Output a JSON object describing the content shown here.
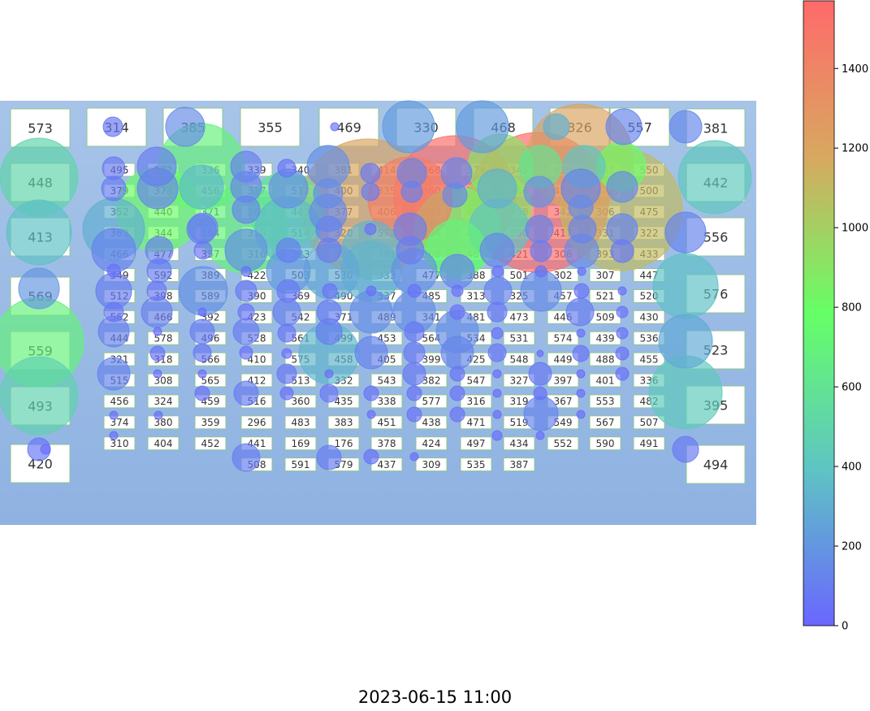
{
  "timestamp": "2023-06-15 11:00",
  "chart_data": {
    "type": "scatter",
    "title": "2023-06-15 11:00",
    "colorbar": {
      "min": 0,
      "max": 1570,
      "ticks": [
        0,
        200,
        400,
        600,
        800,
        1000,
        1200,
        1400
      ],
      "colors": [
        "#6a66ff",
        "#5ec4c4",
        "#66ff66",
        "#d8a860",
        "#ff6a6a"
      ]
    },
    "grid": false,
    "legend": "none",
    "large_cells": {
      "left": [
        573,
        448,
        413,
        569,
        559,
        493,
        420
      ],
      "right": [
        381,
        442,
        556,
        576,
        523,
        395,
        494
      ],
      "top": [
        314,
        385,
        355,
        469,
        330,
        468,
        326,
        557
      ]
    },
    "small_grid": [
      [
        495,
        372,
        336,
        339,
        340,
        381,
        414,
        368,
        574,
        345,
        415,
        397,
        550
      ],
      [
        379,
        373,
        456,
        317,
        512,
        400,
        335,
        360,
        342,
        366,
        426,
        472,
        500
      ],
      [
        352,
        440,
        371,
        566,
        443,
        377,
        406,
        554,
        440,
        358,
        342,
        306,
        475
      ],
      [
        363,
        344,
        584,
        310,
        514,
        320,
        572,
        484,
        467,
        500,
        417,
        331,
        322
      ],
      [
        466,
        477,
        357,
        316,
        323,
        328,
        391,
        368,
        487,
        421,
        306,
        393,
        433
      ],
      [
        349,
        592,
        389,
        422,
        503,
        530,
        333,
        477,
        388,
        501,
        302,
        307,
        447
      ],
      [
        512,
        398,
        589,
        390,
        369,
        490,
        537,
        485,
        313,
        325,
        457,
        521,
        520
      ],
      [
        562,
        466,
        392,
        423,
        542,
        371,
        489,
        341,
        481,
        473,
        446,
        509,
        430
      ],
      [
        444,
        578,
        496,
        528,
        561,
        499,
        453,
        564,
        534,
        531,
        574,
        439,
        536
      ],
      [
        321,
        318,
        566,
        410,
        575,
        458,
        405,
        399,
        425,
        548,
        449,
        488,
        455
      ],
      [
        515,
        308,
        565,
        412,
        513,
        332,
        543,
        382,
        547,
        327,
        397,
        401,
        336
      ],
      [
        456,
        324,
        459,
        516,
        360,
        435,
        338,
        577,
        316,
        319,
        367,
        553,
        482
      ],
      [
        374,
        380,
        359,
        296,
        483,
        383,
        451,
        438,
        471,
        519,
        549,
        567,
        507
      ],
      [
        310,
        404,
        452,
        441,
        169,
        176,
        378,
        424,
        497,
        434,
        552,
        590,
        491
      ],
      [
        null,
        null,
        null,
        508,
        591,
        579,
        437,
        309,
        535,
        387,
        null,
        null,
        null
      ]
    ],
    "bubbles": [
      [
        139,
        156,
        12,
        80
      ],
      [
        228,
        156,
        24,
        160
      ],
      [
        412,
        156,
        5,
        60
      ],
      [
        503,
        156,
        32,
        220
      ],
      [
        594,
        156,
        32,
        220
      ],
      [
        685,
        156,
        16,
        300
      ],
      [
        714,
        193,
        65,
        1200
      ],
      [
        768,
        156,
        22,
        130
      ],
      [
        844,
        156,
        20,
        140
      ],
      [
        48,
        218,
        48,
        500
      ],
      [
        880,
        218,
        45,
        420
      ],
      [
        48,
        286,
        40,
        380
      ],
      [
        844,
        286,
        25,
        120
      ],
      [
        48,
        355,
        25,
        200
      ],
      [
        844,
        352,
        40,
        380
      ],
      [
        48,
        421,
        55,
        700
      ],
      [
        844,
        420,
        33,
        280
      ],
      [
        48,
        487,
        48,
        480
      ],
      [
        844,
        483,
        45,
        430
      ],
      [
        48,
        553,
        14,
        70
      ],
      [
        56,
        553,
        6,
        30
      ],
      [
        844,
        553,
        16,
        80
      ],
      [
        140,
        207,
        14,
        80
      ],
      [
        193,
        205,
        24,
        100
      ],
      [
        248,
        205,
        53,
        700
      ],
      [
        303,
        205,
        19,
        110
      ],
      [
        353,
        207,
        11,
        60
      ],
      [
        404,
        205,
        26,
        170
      ],
      [
        456,
        213,
        12,
        80
      ],
      [
        507,
        213,
        18,
        130
      ],
      [
        562,
        213,
        19,
        130
      ],
      [
        616,
        205,
        40,
        900
      ],
      [
        665,
        205,
        26,
        600
      ],
      [
        719,
        205,
        26,
        400
      ],
      [
        765,
        205,
        30,
        800
      ],
      [
        140,
        232,
        15,
        90
      ],
      [
        194,
        232,
        25,
        130
      ],
      [
        248,
        230,
        27,
        350
      ],
      [
        303,
        230,
        19,
        130
      ],
      [
        355,
        232,
        24,
        170
      ],
      [
        404,
        238,
        18,
        160
      ],
      [
        456,
        236,
        11,
        90
      ],
      [
        507,
        236,
        13,
        110
      ],
      [
        560,
        240,
        15,
        140
      ],
      [
        612,
        232,
        24,
        300
      ],
      [
        664,
        236,
        19,
        180
      ],
      [
        715,
        232,
        24,
        120
      ],
      [
        766,
        230,
        19,
        150
      ],
      [
        140,
        282,
        38,
        300
      ],
      [
        195,
        258,
        52,
        800
      ],
      [
        248,
        282,
        18,
        110
      ],
      [
        303,
        258,
        17,
        120
      ],
      [
        352,
        258,
        46,
        600
      ],
      [
        404,
        262,
        23,
        140
      ],
      [
        453,
        255,
        84,
        1200
      ],
      [
        505,
        245,
        52,
        1450
      ],
      [
        560,
        242,
        75,
        1550
      ],
      [
        612,
        255,
        42,
        900
      ],
      [
        663,
        249,
        86,
        1580
      ],
      [
        715,
        255,
        15,
        150
      ],
      [
        765,
        258,
        75,
        1100
      ],
      [
        140,
        308,
        27,
        120
      ],
      [
        196,
        308,
        17,
        110
      ],
      [
        250,
        280,
        18,
        120
      ],
      [
        301,
        282,
        54,
        700
      ],
      [
        354,
        282,
        40,
        350
      ],
      [
        405,
        282,
        16,
        120
      ],
      [
        456,
        282,
        7,
        40
      ],
      [
        505,
        282,
        20,
        100
      ],
      [
        563,
        284,
        53,
        800
      ],
      [
        614,
        282,
        37,
        400
      ],
      [
        664,
        282,
        17,
        120
      ],
      [
        717,
        282,
        17,
        120
      ],
      [
        766,
        282,
        19,
        120
      ],
      [
        140,
        333,
        8,
        40
      ],
      [
        196,
        333,
        15,
        90
      ],
      [
        250,
        308,
        11,
        60
      ],
      [
        303,
        308,
        26,
        180
      ],
      [
        355,
        308,
        15,
        100
      ],
      [
        405,
        308,
        15,
        100
      ],
      [
        457,
        308,
        36,
        330
      ],
      [
        505,
        308,
        17,
        100
      ],
      [
        561,
        308,
        37,
        700
      ],
      [
        612,
        308,
        21,
        130
      ],
      [
        666,
        309,
        13,
        90
      ],
      [
        716,
        309,
        21,
        150
      ],
      [
        766,
        309,
        14,
        80
      ],
      [
        140,
        358,
        22,
        100
      ],
      [
        193,
        358,
        12,
        70
      ],
      [
        250,
        358,
        30,
        180
      ],
      [
        303,
        334,
        6,
        30
      ],
      [
        355,
        334,
        27,
        220
      ],
      [
        408,
        334,
        34,
        270
      ],
      [
        457,
        334,
        37,
        320
      ],
      [
        510,
        334,
        28,
        180
      ],
      [
        563,
        334,
        21,
        120
      ],
      [
        613,
        334,
        7,
        40
      ],
      [
        666,
        334,
        7,
        40
      ],
      [
        716,
        334,
        5,
        30
      ],
      [
        766,
        358,
        5,
        30
      ],
      [
        140,
        384,
        12,
        70
      ],
      [
        193,
        384,
        19,
        110
      ],
      [
        249,
        384,
        5,
        30
      ],
      [
        303,
        358,
        13,
        80
      ],
      [
        355,
        358,
        14,
        80
      ],
      [
        406,
        358,
        9,
        50
      ],
      [
        457,
        358,
        6,
        30
      ],
      [
        510,
        358,
        8,
        40
      ],
      [
        563,
        358,
        7,
        40
      ],
      [
        613,
        358,
        17,
        110
      ],
      [
        666,
        358,
        25,
        150
      ],
      [
        716,
        358,
        9,
        50
      ],
      [
        766,
        384,
        7,
        40
      ],
      [
        140,
        408,
        19,
        110
      ],
      [
        194,
        408,
        5,
        30
      ],
      [
        249,
        408,
        15,
        90
      ],
      [
        303,
        384,
        10,
        60
      ],
      [
        353,
        384,
        17,
        110
      ],
      [
        405,
        384,
        15,
        90
      ],
      [
        457,
        384,
        26,
        160
      ],
      [
        510,
        384,
        26,
        160
      ],
      [
        563,
        384,
        9,
        50
      ],
      [
        612,
        384,
        12,
        70
      ],
      [
        714,
        384,
        17,
        100
      ],
      [
        766,
        410,
        7,
        40
      ],
      [
        140,
        460,
        20,
        120
      ],
      [
        194,
        435,
        9,
        50
      ],
      [
        249,
        434,
        11,
        70
      ],
      [
        303,
        408,
        16,
        90
      ],
      [
        353,
        410,
        11,
        60
      ],
      [
        405,
        408,
        16,
        90
      ],
      [
        457,
        434,
        20,
        120
      ],
      [
        510,
        408,
        12,
        70
      ],
      [
        563,
        408,
        26,
        160
      ],
      [
        612,
        410,
        7,
        40
      ],
      [
        715,
        410,
        5,
        30
      ],
      [
        766,
        435,
        8,
        40
      ],
      [
        194,
        460,
        5,
        30
      ],
      [
        249,
        460,
        5,
        30
      ],
      [
        303,
        434,
        8,
        40
      ],
      [
        353,
        435,
        6,
        30
      ],
      [
        405,
        435,
        37,
        330
      ],
      [
        510,
        434,
        13,
        80
      ],
      [
        563,
        434,
        20,
        130
      ],
      [
        612,
        434,
        11,
        70
      ],
      [
        665,
        435,
        4,
        25
      ],
      [
        715,
        435,
        10,
        60
      ],
      [
        766,
        460,
        8,
        40
      ],
      [
        140,
        511,
        5,
        30
      ],
      [
        195,
        511,
        5,
        30
      ],
      [
        249,
        484,
        9,
        50
      ],
      [
        303,
        484,
        15,
        90
      ],
      [
        353,
        460,
        12,
        70
      ],
      [
        405,
        460,
        5,
        30
      ],
      [
        510,
        460,
        14,
        80
      ],
      [
        563,
        460,
        9,
        50
      ],
      [
        612,
        460,
        5,
        30
      ],
      [
        665,
        460,
        14,
        80
      ],
      [
        715,
        460,
        5,
        30
      ],
      [
        140,
        536,
        5,
        30
      ],
      [
        303,
        563,
        17,
        100
      ],
      [
        353,
        484,
        8,
        40
      ],
      [
        405,
        484,
        11,
        70
      ],
      [
        457,
        484,
        9,
        50
      ],
      [
        510,
        484,
        9,
        50
      ],
      [
        563,
        484,
        9,
        50
      ],
      [
        612,
        484,
        5,
        30
      ],
      [
        665,
        484,
        8,
        40
      ],
      [
        715,
        484,
        5,
        30
      ],
      [
        405,
        563,
        15,
        90
      ],
      [
        457,
        510,
        5,
        30
      ],
      [
        510,
        510,
        9,
        50
      ],
      [
        563,
        510,
        9,
        50
      ],
      [
        612,
        510,
        5,
        30
      ],
      [
        666,
        509,
        21,
        120
      ],
      [
        715,
        510,
        5,
        30
      ],
      [
        457,
        562,
        9,
        50
      ],
      [
        510,
        562,
        5,
        30
      ],
      [
        612,
        536,
        6,
        30
      ],
      [
        665,
        536,
        5,
        30
      ]
    ]
  }
}
